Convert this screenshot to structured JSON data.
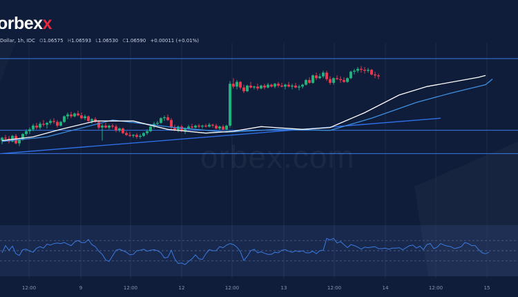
{
  "brand": {
    "logo_main": "orbex",
    "logo_x": "x",
    "watermark": "orbex.com"
  },
  "header": {
    "symbol_fragment": "Dollar, 1h, IDC",
    "open_label": "O",
    "open": "1.06575",
    "high_label": "H",
    "high": "1.06593",
    "low_label": "L",
    "low": "1.06530",
    "close_label": "C",
    "close": "1.06590",
    "change": "+0.00011 (+0.01%)"
  },
  "colors": {
    "background": "#0f1d3a",
    "up": "#22b07d",
    "down": "#e8394f",
    "ma_fast": "#ffffff",
    "ma_slow": "#3f8fe0",
    "trendline": "#2f6fe8",
    "hline": "#3b78e8",
    "rsi": "#3a7be0",
    "grid": "#1c2c4d"
  },
  "chart_data": {
    "type": "candlestick",
    "timeframe": "1h",
    "price_range": [
      1.0515,
      1.0705
    ],
    "x_ticks": [
      "12:00",
      "9",
      "12:00",
      "12",
      "12:00",
      "13",
      "12:00",
      "14",
      "12:00",
      "15"
    ],
    "horizontal_levels": [
      1.0688,
      1.0611,
      1.0586
    ],
    "trendline": {
      "from": [
        0,
        1.0586
      ],
      "to": [
        127,
        1.0624
      ]
    },
    "candles": [
      [
        1.06,
        1.0604,
        1.0596,
        1.0603
      ],
      [
        1.0603,
        1.0606,
        1.06,
        1.0602
      ],
      [
        1.0602,
        1.0605,
        1.0597,
        1.0599
      ],
      [
        1.0599,
        1.0606,
        1.0598,
        1.0605
      ],
      [
        1.0605,
        1.0607,
        1.0596,
        1.0597
      ],
      [
        1.0597,
        1.0603,
        1.0594,
        1.0601
      ],
      [
        1.0601,
        1.0608,
        1.06,
        1.0607
      ],
      [
        1.0607,
        1.0612,
        1.0605,
        1.061
      ],
      [
        1.061,
        1.0614,
        1.0607,
        1.0612
      ],
      [
        1.0612,
        1.0618,
        1.061,
        1.0616
      ],
      [
        1.0616,
        1.0619,
        1.0612,
        1.0614
      ],
      [
        1.0614,
        1.062,
        1.0612,
        1.0618
      ],
      [
        1.0618,
        1.0622,
        1.0615,
        1.0617
      ],
      [
        1.0617,
        1.062,
        1.0613,
        1.0619
      ],
      [
        1.0619,
        1.0623,
        1.0617,
        1.0621
      ],
      [
        1.0621,
        1.0624,
        1.0618,
        1.062
      ],
      [
        1.062,
        1.0622,
        1.0614,
        1.0616
      ],
      [
        1.0616,
        1.0621,
        1.0615,
        1.062
      ],
      [
        1.062,
        1.0627,
        1.0619,
        1.0626
      ],
      [
        1.0626,
        1.063,
        1.0623,
        1.0628
      ],
      [
        1.0628,
        1.0631,
        1.0624,
        1.0626
      ],
      [
        1.0626,
        1.063,
        1.0625,
        1.0629
      ],
      [
        1.0629,
        1.0632,
        1.0626,
        1.0627
      ],
      [
        1.0627,
        1.063,
        1.0623,
        1.0624
      ],
      [
        1.0624,
        1.0628,
        1.0622,
        1.0626
      ],
      [
        1.0626,
        1.0627,
        1.062,
        1.0621
      ],
      [
        1.0621,
        1.0624,
        1.0618,
        1.0623
      ],
      [
        1.0623,
        1.0625,
        1.0619,
        1.062
      ],
      [
        1.062,
        1.0622,
        1.0612,
        1.0614
      ],
      [
        1.0614,
        1.0618,
        1.06,
        1.0616
      ],
      [
        1.0616,
        1.0619,
        1.0613,
        1.0614
      ],
      [
        1.0614,
        1.0617,
        1.0612,
        1.0616
      ],
      [
        1.0616,
        1.0618,
        1.0613,
        1.0615
      ],
      [
        1.0615,
        1.0617,
        1.0609,
        1.0611
      ],
      [
        1.0611,
        1.0614,
        1.0609,
        1.0613
      ],
      [
        1.0613,
        1.0614,
        1.0607,
        1.0608
      ],
      [
        1.0608,
        1.061,
        1.0605,
        1.0606
      ],
      [
        1.0606,
        1.0609,
        1.0604,
        1.0605
      ],
      [
        1.0605,
        1.0607,
        1.0603,
        1.0606
      ],
      [
        1.0606,
        1.0608,
        1.0602,
        1.0604
      ],
      [
        1.0604,
        1.0607,
        1.0602,
        1.0605
      ],
      [
        1.0605,
        1.0609,
        1.0604,
        1.0608
      ],
      [
        1.0608,
        1.0612,
        1.0606,
        1.061
      ],
      [
        1.061,
        1.0616,
        1.0609,
        1.0615
      ],
      [
        1.0615,
        1.062,
        1.0613,
        1.0618
      ],
      [
        1.0618,
        1.0621,
        1.0616,
        1.0619
      ],
      [
        1.0619,
        1.0625,
        1.0618,
        1.0624
      ],
      [
        1.0624,
        1.0627,
        1.0621,
        1.0625
      ],
      [
        1.0625,
        1.0628,
        1.0621,
        1.0622
      ],
      [
        1.0622,
        1.0624,
        1.0612,
        1.0614
      ],
      [
        1.0614,
        1.0617,
        1.061,
        1.0611
      ],
      [
        1.0611,
        1.0616,
        1.0609,
        1.0615
      ],
      [
        1.0615,
        1.0617,
        1.0609,
        1.061
      ],
      [
        1.061,
        1.0614,
        1.0607,
        1.0613
      ],
      [
        1.0613,
        1.0617,
        1.0612,
        1.0615
      ],
      [
        1.0615,
        1.0618,
        1.0612,
        1.0614
      ],
      [
        1.0614,
        1.0617,
        1.0613,
        1.0616
      ],
      [
        1.0616,
        1.0618,
        1.0613,
        1.0615
      ],
      [
        1.0615,
        1.0617,
        1.0613,
        1.0616
      ],
      [
        1.0616,
        1.0618,
        1.0614,
        1.0615
      ],
      [
        1.0615,
        1.0619,
        1.0614,
        1.0617
      ],
      [
        1.0617,
        1.0618,
        1.0614,
        1.0616
      ],
      [
        1.0616,
        1.0618,
        1.0612,
        1.0613
      ],
      [
        1.0613,
        1.0616,
        1.0611,
        1.0615
      ],
      [
        1.0615,
        1.0617,
        1.0611,
        1.0612
      ],
      [
        1.0612,
        1.0617,
        1.0611,
        1.0616
      ],
      [
        1.0616,
        1.0664,
        1.0614,
        1.0661
      ],
      [
        1.0661,
        1.0667,
        1.0656,
        1.0658
      ],
      [
        1.0658,
        1.0665,
        1.0655,
        1.0663
      ],
      [
        1.0663,
        1.0664,
        1.0655,
        1.0657
      ],
      [
        1.0657,
        1.066,
        1.0651,
        1.0653
      ],
      [
        1.0653,
        1.066,
        1.0652,
        1.0659
      ],
      [
        1.0659,
        1.0663,
        1.0656,
        1.0657
      ],
      [
        1.0657,
        1.0659,
        1.0655,
        1.0658
      ],
      [
        1.0658,
        1.0661,
        1.0654,
        1.0656
      ],
      [
        1.0656,
        1.066,
        1.0655,
        1.0659
      ],
      [
        1.0659,
        1.0661,
        1.0655,
        1.0657
      ],
      [
        1.0657,
        1.0662,
        1.0656,
        1.066
      ],
      [
        1.066,
        1.0661,
        1.0657,
        1.0658
      ],
      [
        1.0658,
        1.0662,
        1.0656,
        1.0661
      ],
      [
        1.0661,
        1.0663,
        1.0657,
        1.0659
      ],
      [
        1.0659,
        1.0662,
        1.0657,
        1.0658
      ],
      [
        1.0658,
        1.0661,
        1.0655,
        1.066
      ],
      [
        1.066,
        1.0663,
        1.0657,
        1.0658
      ],
      [
        1.0658,
        1.0661,
        1.0655,
        1.0659
      ],
      [
        1.0659,
        1.0662,
        1.0656,
        1.0657
      ],
      [
        1.0657,
        1.066,
        1.0654,
        1.0658
      ],
      [
        1.0658,
        1.0661,
        1.0656,
        1.066
      ],
      [
        1.066,
        1.0666,
        1.0659,
        1.0665
      ],
      [
        1.0665,
        1.0668,
        1.0661,
        1.0662
      ],
      [
        1.0662,
        1.0671,
        1.0661,
        1.067
      ],
      [
        1.067,
        1.0673,
        1.0665,
        1.0667
      ],
      [
        1.0667,
        1.0672,
        1.0666,
        1.0669
      ],
      [
        1.0669,
        1.0675,
        1.0667,
        1.0673
      ],
      [
        1.0673,
        1.0675,
        1.0664,
        1.0666
      ],
      [
        1.0666,
        1.0669,
        1.066,
        1.0662
      ],
      [
        1.0662,
        1.0668,
        1.066,
        1.0667
      ],
      [
        1.0667,
        1.067,
        1.0665,
        1.0666
      ],
      [
        1.0666,
        1.0669,
        1.0662,
        1.0665
      ],
      [
        1.0665,
        1.0668,
        1.0662,
        1.0663
      ],
      [
        1.0663,
        1.0668,
        1.0662,
        1.0667
      ],
      [
        1.0667,
        1.0675,
        1.0666,
        1.0674
      ],
      [
        1.0674,
        1.0677,
        1.0671,
        1.0675
      ],
      [
        1.0675,
        1.0679,
        1.0673,
        1.0677
      ],
      [
        1.0677,
        1.068,
        1.0673,
        1.0676
      ],
      [
        1.0676,
        1.0679,
        1.0672,
        1.0675
      ],
      [
        1.0675,
        1.0678,
        1.0673,
        1.0676
      ],
      [
        1.0676,
        1.0677,
        1.067,
        1.0671
      ],
      [
        1.0671,
        1.0674,
        1.0667,
        1.067
      ],
      [
        1.067,
        1.0672,
        1.0666,
        1.0669
      ]
    ],
    "ma_fast": [
      [
        0,
        1.06
      ],
      [
        9,
        1.0604
      ],
      [
        17,
        1.0612
      ],
      [
        27,
        1.0621
      ],
      [
        38,
        1.0621
      ],
      [
        48,
        1.0612
      ],
      [
        59,
        1.0608
      ],
      [
        67,
        1.061
      ],
      [
        75,
        1.0615
      ],
      [
        87,
        1.0612
      ],
      [
        95,
        1.0614
      ],
      [
        105,
        1.063
      ],
      [
        115,
        1.0649
      ],
      [
        123,
        1.0658
      ],
      [
        138,
        1.0668
      ],
      [
        140,
        1.067
      ]
    ],
    "ma_slow": [
      [
        0,
        1.0599
      ],
      [
        13,
        1.0604
      ],
      [
        32,
        1.0622
      ],
      [
        50,
        1.0614
      ],
      [
        65,
        1.0609
      ],
      [
        80,
        1.0612
      ],
      [
        95,
        1.0611
      ],
      [
        107,
        1.0624
      ],
      [
        120,
        1.0641
      ],
      [
        130,
        1.0651
      ],
      [
        140,
        1.066
      ],
      [
        142,
        1.0666
      ]
    ],
    "oscillator": {
      "range": [
        0,
        100
      ],
      "levels": [
        70,
        50,
        30
      ],
      "values": [
        46,
        60,
        51,
        59,
        44,
        41,
        52,
        53,
        49,
        47,
        55,
        58,
        55,
        63,
        61,
        64,
        65,
        64,
        66,
        63,
        60,
        67,
        70,
        66,
        66,
        72,
        62,
        58,
        49,
        43,
        32,
        29,
        40,
        51,
        53,
        50,
        47,
        42,
        43,
        50,
        51,
        53,
        49,
        51,
        52,
        50,
        46,
        36,
        37,
        51,
        34,
        25,
        26,
        23,
        29,
        34,
        42,
        34,
        33,
        44,
        52,
        50,
        50,
        58,
        56,
        61,
        64,
        62,
        57,
        48,
        31,
        39,
        50,
        53,
        46,
        48,
        45,
        43,
        43,
        47,
        46,
        51,
        52,
        49,
        47,
        50,
        48,
        50,
        46,
        46,
        49,
        44,
        50,
        51,
        74,
        71,
        74,
        65,
        68,
        62,
        56,
        62,
        60,
        57,
        53,
        57,
        56,
        57,
        58,
        54,
        54,
        55,
        53,
        55,
        55,
        56,
        52,
        56,
        60,
        61,
        55,
        59,
        52,
        62,
        64,
        54,
        57,
        64,
        61,
        59,
        58,
        54,
        56,
        58,
        66,
        64,
        60,
        60,
        52,
        46,
        44,
        47
      ]
    }
  }
}
